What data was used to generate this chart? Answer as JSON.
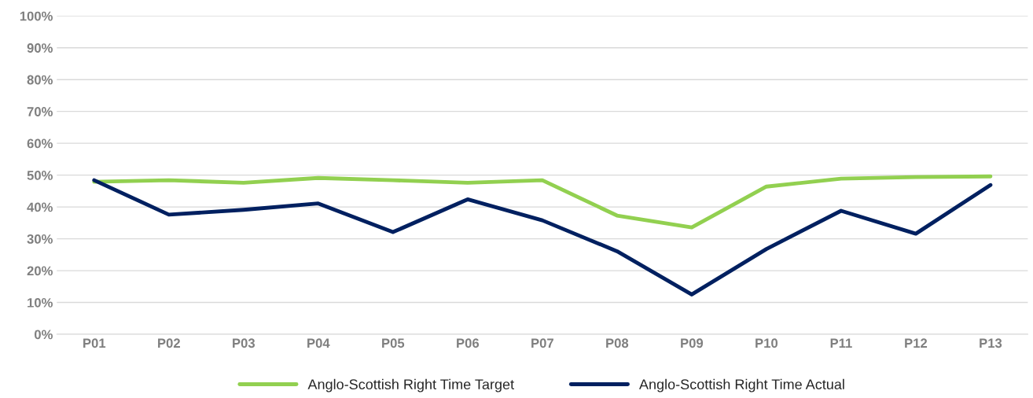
{
  "chart_data": {
    "type": "line",
    "categories": [
      "P01",
      "P02",
      "P03",
      "P04",
      "P05",
      "P06",
      "P07",
      "P08",
      "P09",
      "P10",
      "P11",
      "P12",
      "P13"
    ],
    "series": [
      {
        "name": "Anglo-Scottish Right Time Target",
        "color": "#92d050",
        "values": [
          47.9,
          48.4,
          47.6,
          49.1,
          48.4,
          47.6,
          48.4,
          37.3,
          33.6,
          46.4,
          48.9,
          49.4,
          49.6
        ]
      },
      {
        "name": "Anglo-Scottish Right Time Actual",
        "color": "#002060",
        "values": [
          48.4,
          37.6,
          39.1,
          41.1,
          32.1,
          42.4,
          35.8,
          26.1,
          12.5,
          26.8,
          38.8,
          31.6,
          46.9
        ]
      }
    ],
    "ylim": [
      0,
      100
    ],
    "yticks": [
      {
        "value": 0,
        "label": "0%"
      },
      {
        "value": 10,
        "label": "10%"
      },
      {
        "value": 20,
        "label": "20%"
      },
      {
        "value": 30,
        "label": "30%"
      },
      {
        "value": 40,
        "label": "40%"
      },
      {
        "value": 50,
        "label": "50%"
      },
      {
        "value": 60,
        "label": "60%"
      },
      {
        "value": 70,
        "label": "70%"
      },
      {
        "value": 80,
        "label": "80%"
      },
      {
        "value": 90,
        "label": "90%"
      },
      {
        "value": 100,
        "label": "100%"
      }
    ],
    "grid": "y",
    "legend": "bottom",
    "marker": "none",
    "line_style": "solid"
  }
}
